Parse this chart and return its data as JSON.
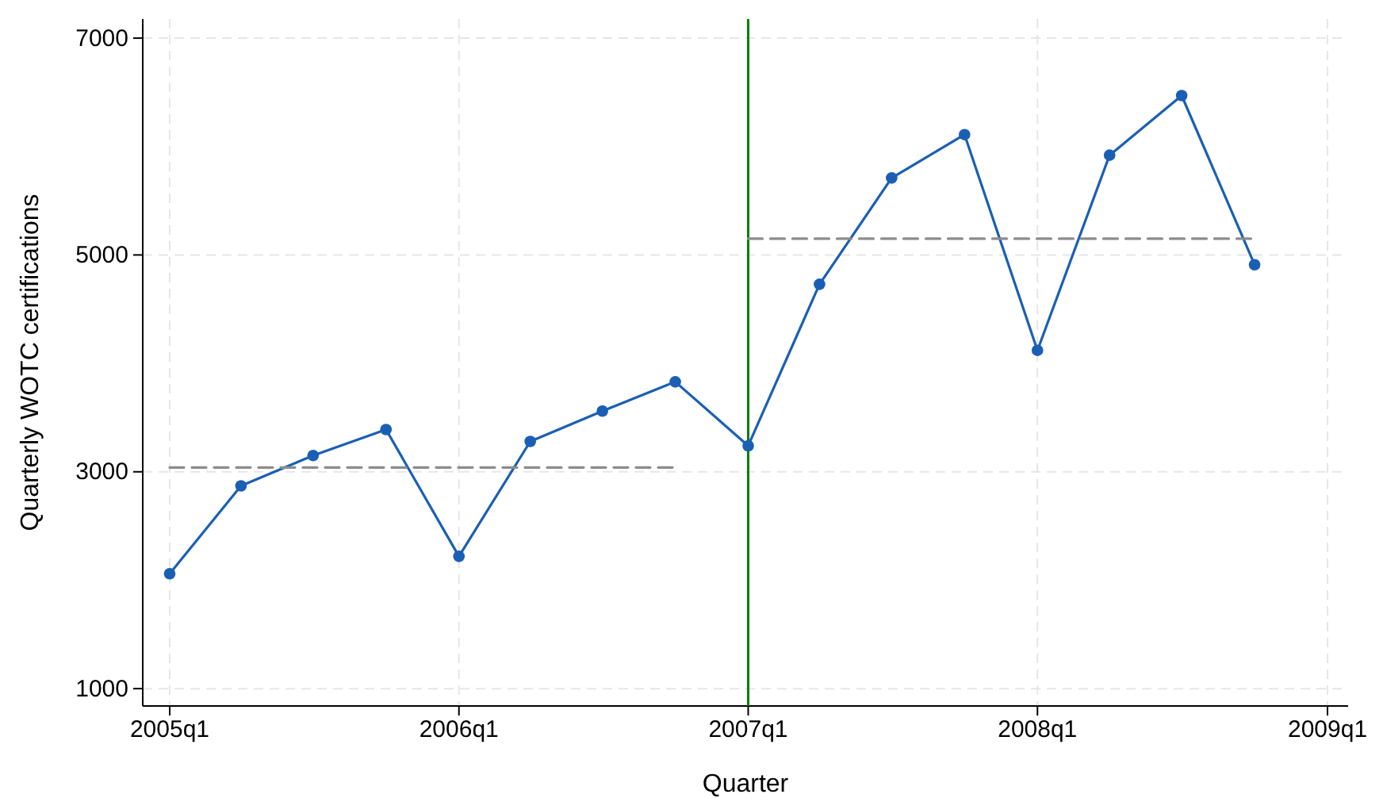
{
  "chart_data": {
    "type": "line",
    "xlabel": "Quarter",
    "ylabel": "Quarterly WOTC certifications",
    "x": [
      "2005-01-01",
      "2005-04-01",
      "2005-07-01",
      "2005-10-01",
      "2006-01-01",
      "2006-04-01",
      "2006-07-01",
      "2006-10-01",
      "2007-01-01",
      "2007-04-01",
      "2007-07-01",
      "2007-10-01",
      "2008-01-01",
      "2008-04-01",
      "2008-07-01",
      "2008-10-01"
    ],
    "series": [
      {
        "color": "#1a5fb4",
        "values": [
          2060,
          2870,
          3150,
          3390,
          2220,
          3280,
          3560,
          3830,
          3240,
          4730,
          5710,
          6110,
          4120,
          5920,
          6470,
          4910
        ]
      },
      {
        "color": "#8c8c8c",
        "marker": "none",
        "line_style": "dashed",
        "x": [
          "2005-01-01",
          "2006-10-01"
        ],
        "values": [
          3040,
          3040
        ]
      },
      {
        "color": "#8c8c8c",
        "marker": "none",
        "line_style": "dashed",
        "x": [
          "2007-01-01",
          "2008-10-01"
        ],
        "values": [
          5150,
          5150
        ]
      }
    ],
    "xlim": [
      "2004-11-28",
      "2009-01-27"
    ],
    "ylim": [
      840,
      7176
    ],
    "xticks": [
      {
        "value": "2005-01-01",
        "label": "2005q1"
      },
      {
        "value": "2006-01-01",
        "label": "2006q1"
      },
      {
        "value": "2007-01-01",
        "label": "2007q1"
      },
      {
        "value": "2008-01-01",
        "label": "2008q1"
      },
      {
        "value": "2009-01-01",
        "label": "2009q1"
      }
    ],
    "yticks": [
      1000,
      3000,
      5000,
      7000
    ],
    "ref_lines": [
      {
        "axis": "x",
        "value": "2007-01-01",
        "color": "#008000"
      }
    ],
    "grid": true,
    "marker": "circle",
    "line_style": "solid"
  }
}
